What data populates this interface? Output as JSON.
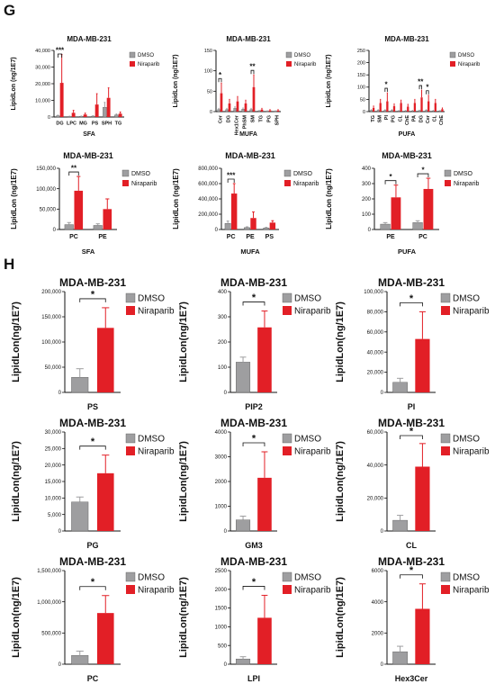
{
  "panel_letters": [
    "G",
    "H"
  ],
  "colors": {
    "dmso": "#9e9ea0",
    "niraparib": "#e21f26",
    "axis": "#111111",
    "errorbar_dmso": "#9e9ea0",
    "errorbar_niraparib": "#e21f26"
  },
  "chart_data": [
    {
      "panel": "G",
      "type": "bar",
      "title": "MDA-MB-231",
      "xlabel": "SFA",
      "ylabel": "LipidLon (ng/1E7)",
      "categories": [
        "DG",
        "LPC",
        "MG",
        "PS",
        "SPH",
        "TG"
      ],
      "series": [
        {
          "name": "DMSO",
          "values": [
            700,
            300,
            400,
            500,
            5800,
            1200
          ],
          "err": [
            400,
            200,
            200,
            300,
            3000,
            600
          ]
        },
        {
          "name": "Niraparib",
          "values": [
            20500,
            2500,
            1500,
            7500,
            11500,
            2000
          ],
          "err": [
            17000,
            1500,
            800,
            6500,
            6000,
            1000
          ]
        }
      ],
      "ylim": [
        0,
        40000
      ],
      "yticks": [
        "0",
        "10,000",
        "20,000",
        "30,000",
        "40,000"
      ],
      "significance": [
        {
          "category": "DG",
          "label": "***"
        }
      ]
    },
    {
      "panel": "G",
      "type": "bar",
      "title": "MDA-MB-231",
      "xlabel": "MUFA",
      "ylabel": "LipidLon (ng/1E7)",
      "categories": [
        "Cer",
        "DG",
        "Hex1Cer",
        "PhSM",
        "SM",
        "TG",
        "PG",
        "SPH"
      ],
      "series": [
        {
          "name": "DMSO",
          "values": [
            5,
            5,
            8,
            6,
            5,
            2,
            1,
            1
          ],
          "err": [
            3,
            3,
            4,
            3,
            3,
            1,
            1,
            1
          ]
        },
        {
          "name": "Niraparib",
          "values": [
            45,
            20,
            25,
            20,
            60,
            5,
            3,
            3
          ],
          "err": [
            25,
            10,
            12,
            8,
            30,
            3,
            2,
            2
          ]
        }
      ],
      "ylim": [
        0,
        150
      ],
      "yticks": [
        "0",
        "50",
        "100",
        "150"
      ],
      "significance": [
        {
          "category": "Cer",
          "label": "*"
        },
        {
          "category": "SM",
          "label": "**"
        }
      ]
    },
    {
      "panel": "G",
      "type": "bar",
      "title": "MDA-MB-231",
      "xlabel": "PUFA",
      "ylabel": "LipidLon (ng/1E7)",
      "categories": [
        "TG",
        "SM",
        "PI",
        "PG",
        "CL",
        "ChE",
        "PA",
        "DG",
        "Cer",
        "CL",
        "ChE"
      ],
      "series": [
        {
          "name": "DMSO",
          "values": [
            5,
            5,
            5,
            5,
            3,
            3,
            3,
            4,
            5,
            3,
            3
          ],
          "err": [
            3,
            3,
            3,
            3,
            2,
            2,
            2,
            2,
            3,
            2,
            2
          ]
        },
        {
          "name": "Niraparib",
          "values": [
            15,
            35,
            42,
            22,
            35,
            20,
            35,
            58,
            42,
            35,
            10
          ],
          "err": [
            8,
            15,
            35,
            10,
            12,
            10,
            15,
            30,
            25,
            15,
            5
          ]
        }
      ],
      "ylim": [
        0,
        250
      ],
      "yticks": [
        "0",
        "50",
        "100",
        "150",
        "200",
        "250"
      ],
      "significance": [
        {
          "category": "PI",
          "label": "*"
        },
        {
          "category": "DG",
          "label": "**"
        },
        {
          "category": "Cer",
          "label": "*"
        }
      ]
    },
    {
      "panel": "G",
      "type": "bar",
      "title": "MDA-MB-231",
      "xlabel": "SFA",
      "ylabel": "LipidLon (ng/1E7)",
      "categories": [
        "PC",
        "PE"
      ],
      "series": [
        {
          "name": "DMSO",
          "values": [
            12000,
            10000
          ],
          "err": [
            5000,
            4000
          ]
        },
        {
          "name": "Niraparib",
          "values": [
            95000,
            50000
          ],
          "err": [
            35000,
            25000
          ]
        }
      ],
      "ylim": [
        0,
        150000
      ],
      "yticks": [
        "0",
        "50,000",
        "100,000",
        "150,000"
      ],
      "significance": [
        {
          "category": "PC",
          "label": "**"
        }
      ]
    },
    {
      "panel": "G",
      "type": "bar",
      "title": "MDA-MB-231",
      "xlabel": "MUFA",
      "ylabel": "LipidLon (ng/1E7)",
      "categories": [
        "PC",
        "PE",
        "PS"
      ],
      "series": [
        {
          "name": "DMSO",
          "values": [
            80000,
            25000,
            20000
          ],
          "err": [
            30000,
            10000,
            8000
          ]
        },
        {
          "name": "Niraparib",
          "values": [
            470000,
            150000,
            90000
          ],
          "err": [
            130000,
            80000,
            25000
          ]
        }
      ],
      "ylim": [
        0,
        800000
      ],
      "yticks": [
        "0",
        "200,000",
        "400,000",
        "600,000",
        "800,000"
      ],
      "significance": [
        {
          "category": "PC",
          "label": "***"
        }
      ]
    },
    {
      "panel": "G",
      "type": "bar",
      "title": "MDA-MB-231",
      "xlabel": "PUFA",
      "ylabel": "LipidLon (ng/1E7)",
      "categories": [
        "PE",
        "PC"
      ],
      "series": [
        {
          "name": "DMSO",
          "values": [
            35,
            45
          ],
          "err": [
            10,
            12
          ]
        },
        {
          "name": "Niraparib",
          "values": [
            210,
            265
          ],
          "err": [
            80,
            70
          ]
        }
      ],
      "ylim": [
        0,
        400
      ],
      "yticks": [
        "0",
        "100",
        "200",
        "300",
        "400"
      ],
      "significance": [
        {
          "category": "PE",
          "label": "*"
        },
        {
          "category": "PC",
          "label": "*"
        }
      ]
    },
    {
      "panel": "H",
      "type": "bar",
      "title": "MDA-MB-231",
      "xlabel": "PS",
      "ylabel": "LipidLon(ng/1E7)",
      "categories": [
        "PS"
      ],
      "series": [
        {
          "name": "DMSO",
          "values": [
            30000
          ],
          "err": [
            17000
          ]
        },
        {
          "name": "Niraparib",
          "values": [
            128000
          ],
          "err": [
            40000
          ]
        }
      ],
      "ylim": [
        0,
        200000
      ],
      "yticks": [
        "0",
        "50,000",
        "100,000",
        "150,000",
        "200,000"
      ],
      "significance": [
        {
          "label": "*"
        }
      ]
    },
    {
      "panel": "H",
      "type": "bar",
      "title": "MDA-MB-231",
      "xlabel": "PIP2",
      "ylabel": "LipidLon(ng/1E7)",
      "categories": [
        "PIP2"
      ],
      "series": [
        {
          "name": "DMSO",
          "values": [
            120
          ],
          "err": [
            20
          ]
        },
        {
          "name": "Niraparib",
          "values": [
            258
          ],
          "err": [
            65
          ]
        }
      ],
      "ylim": [
        0,
        400
      ],
      "yticks": [
        "0",
        "100",
        "200",
        "300",
        "400"
      ],
      "significance": [
        {
          "label": "*"
        }
      ]
    },
    {
      "panel": "H",
      "type": "bar",
      "title": "MDA-MB-231",
      "xlabel": "PI",
      "ylabel": "LipidLon(ng/1E7)",
      "categories": [
        "PI"
      ],
      "series": [
        {
          "name": "DMSO",
          "values": [
            10000
          ],
          "err": [
            4000
          ]
        },
        {
          "name": "Niraparib",
          "values": [
            53000
          ],
          "err": [
            27000
          ]
        }
      ],
      "ylim": [
        0,
        100000
      ],
      "yticks": [
        "0",
        "20,000",
        "40,000",
        "60,000",
        "80,000",
        "100,000"
      ],
      "significance": [
        {
          "label": "*"
        }
      ]
    },
    {
      "panel": "H",
      "type": "bar",
      "title": "MDA-MB-231",
      "xlabel": "PG",
      "ylabel": "LipidLon(ng/1E7)",
      "categories": [
        "PG"
      ],
      "series": [
        {
          "name": "DMSO",
          "values": [
            8800
          ],
          "err": [
            1500
          ]
        },
        {
          "name": "Niraparib",
          "values": [
            17500
          ],
          "err": [
            5500
          ]
        }
      ],
      "ylim": [
        0,
        30000
      ],
      "yticks": [
        "0",
        "5,000",
        "10,000",
        "15,000",
        "20,000",
        "25,000",
        "30,000"
      ],
      "significance": [
        {
          "label": "*"
        }
      ]
    },
    {
      "panel": "H",
      "type": "bar",
      "title": "MDA-MB-231",
      "xlabel": "GM3",
      "ylabel": "LipidLon(ng/1E7)",
      "categories": [
        "GM3"
      ],
      "series": [
        {
          "name": "DMSO",
          "values": [
            450
          ],
          "err": [
            150
          ]
        },
        {
          "name": "Niraparib",
          "values": [
            2150
          ],
          "err": [
            1050
          ]
        }
      ],
      "ylim": [
        0,
        4000
      ],
      "yticks": [
        "0",
        "1000",
        "2000",
        "3000",
        "4000"
      ],
      "significance": [
        {
          "label": "*"
        }
      ]
    },
    {
      "panel": "H",
      "type": "bar",
      "title": "MDA-MB-231",
      "xlabel": "CL",
      "ylabel": "LipidLon(ng/1E7)",
      "categories": [
        "CL"
      ],
      "series": [
        {
          "name": "DMSO",
          "values": [
            6500
          ],
          "err": [
            3000
          ]
        },
        {
          "name": "Niraparib",
          "values": [
            39000
          ],
          "err": [
            14000
          ]
        }
      ],
      "ylim": [
        0,
        60000
      ],
      "yticks": [
        "0",
        "20,000",
        "40,000",
        "60,000"
      ],
      "significance": [
        {
          "label": "*"
        }
      ]
    },
    {
      "panel": "H",
      "type": "bar",
      "title": "MDA-MB-231",
      "xlabel": "PC",
      "ylabel": "LipidLon(ng/1E7)",
      "categories": [
        "PC"
      ],
      "series": [
        {
          "name": "DMSO",
          "values": [
            140000
          ],
          "err": [
            70000
          ]
        },
        {
          "name": "Niraparib",
          "values": [
            820000
          ],
          "err": [
            280000
          ]
        }
      ],
      "ylim": [
        0,
        1500000
      ],
      "yticks": [
        "0",
        "500,000",
        "1,000,000",
        "1,500,000"
      ],
      "significance": [
        {
          "label": "*"
        }
      ]
    },
    {
      "panel": "H",
      "type": "bar",
      "title": "MDA-MB-231",
      "xlabel": "LPI",
      "ylabel": "LipidLon(ng/1E7)",
      "categories": [
        "LPI"
      ],
      "series": [
        {
          "name": "DMSO",
          "values": [
            140
          ],
          "err": [
            60
          ]
        },
        {
          "name": "Niraparib",
          "values": [
            1240
          ],
          "err": [
            600
          ]
        }
      ],
      "ylim": [
        0,
        2500
      ],
      "yticks": [
        "0",
        "500",
        "1000",
        "1500",
        "2000",
        "2500"
      ],
      "significance": [
        {
          "label": "*"
        }
      ]
    },
    {
      "panel": "H",
      "type": "bar",
      "title": "MDA-MB-231",
      "xlabel": "Hex3Cer",
      "ylabel": "LipidLon(ng/1E7)",
      "categories": [
        "Hex3Cer"
      ],
      "series": [
        {
          "name": "DMSO",
          "values": [
            800
          ],
          "err": [
            350
          ]
        },
        {
          "name": "Niraparib",
          "values": [
            3550
          ],
          "err": [
            1600
          ]
        }
      ],
      "ylim": [
        0,
        6000
      ],
      "yticks": [
        "0",
        "2000",
        "4000",
        "6000"
      ],
      "significance": [
        {
          "label": "*"
        }
      ]
    }
  ]
}
